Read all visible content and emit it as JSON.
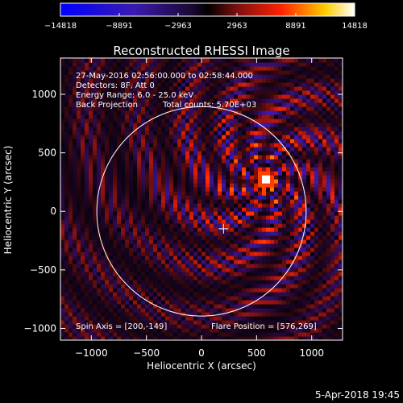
{
  "chart_data": {
    "type": "heatmap",
    "title": "Reconstructed RHESSI Image",
    "xlabel": "Heliocentric X (arcsec)",
    "ylabel": "Heliocentric Y (arcsec)",
    "xlim": [
      -1280,
      1280
    ],
    "ylim": [
      -1100,
      1310
    ],
    "x_ticks": [
      -1000,
      -500,
      0,
      500,
      1000
    ],
    "y_ticks": [
      -1000,
      -500,
      0,
      500,
      1000
    ],
    "x_tick_labels": [
      "−1000",
      "−500",
      "0",
      "500",
      "1000"
    ],
    "y_tick_labels": [
      "−1000",
      "−500",
      "0",
      "500",
      "1000"
    ],
    "colorbar": {
      "min": -14818,
      "max": 14818,
      "ticks": [
        -14818,
        -8891,
        -2963,
        2963,
        8891,
        14818
      ],
      "tick_labels": [
        "−14818",
        "−8891",
        "−2963",
        "2963",
        "8891",
        "14818"
      ]
    },
    "annotations": {
      "line1": "27-May-2016 02:56:00.000 to 02:58:44.000",
      "line2": "Detectors: 8F, Att 0",
      "line3": "Energy Range: 6.0 - 25.0 keV",
      "line4a": "Back Projection",
      "line4b": "Total counts: 5.70E+03",
      "spin_axis": "Spin Axis = [200,-149]",
      "flare_position": "Flare Position = [576,269]"
    },
    "solar_limb": {
      "center_x": 0,
      "center_y": 0,
      "radius": 950
    },
    "spin_axis_marker": {
      "x": 200,
      "y": -149
    },
    "flare_peak": {
      "x": 576,
      "y": 269
    },
    "grid": false
  },
  "footer": {
    "timestamp": "5-Apr-2018 19:45"
  }
}
